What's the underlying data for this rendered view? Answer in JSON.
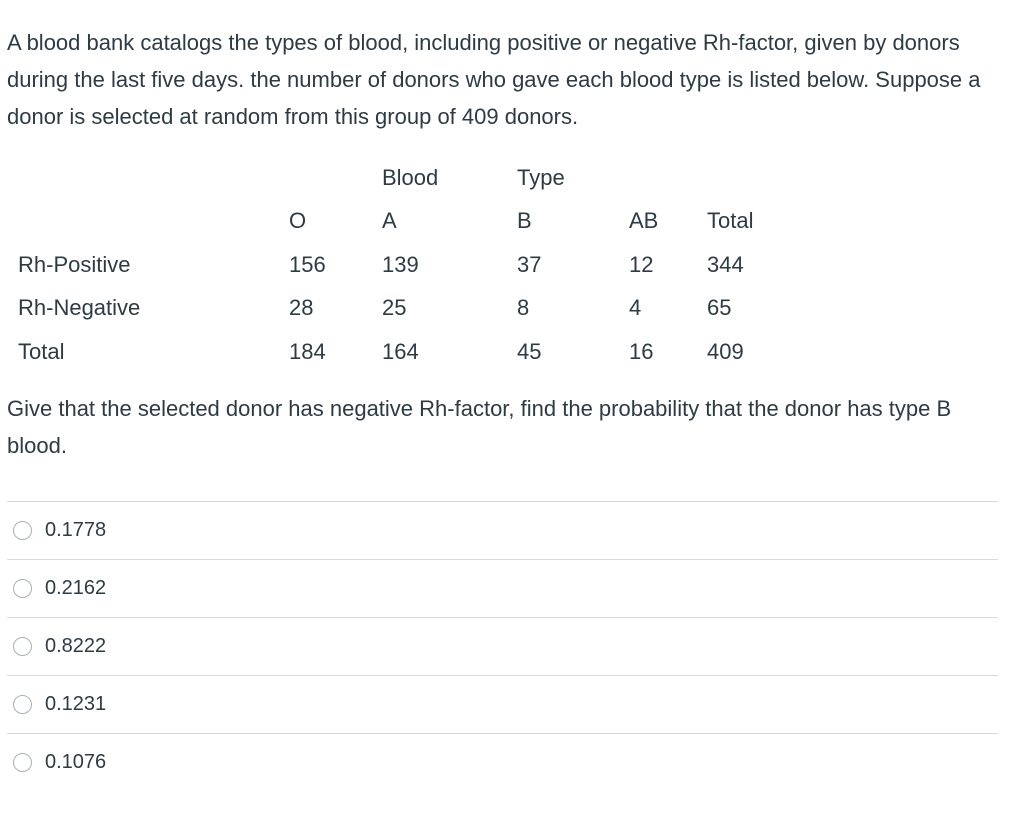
{
  "question": {
    "intro": "A blood bank catalogs the types of blood, including positive or negative Rh-factor, given by donors during the last five days. the number of donors who gave each blood type is listed below. Suppose a donor is selected at random from this group of 409 donors.",
    "prompt": "Give that the selected donor has negative Rh-factor, find the probability that the donor has type B blood."
  },
  "table": {
    "super_header": [
      "",
      "",
      "Blood",
      "Type",
      "",
      ""
    ],
    "header": [
      "",
      "O",
      "A",
      "B",
      "AB",
      "Total"
    ],
    "rows": [
      [
        "Rh-Positive",
        "156",
        "139",
        "37",
        "12",
        "344"
      ],
      [
        "Rh-Negative",
        "28",
        "25",
        "8",
        "4",
        "65"
      ],
      [
        "Total",
        "184",
        "164",
        "45",
        "16",
        "409"
      ]
    ]
  },
  "answers": [
    "0.1778",
    "0.2162",
    "0.8222",
    "0.1231",
    "0.1076"
  ]
}
